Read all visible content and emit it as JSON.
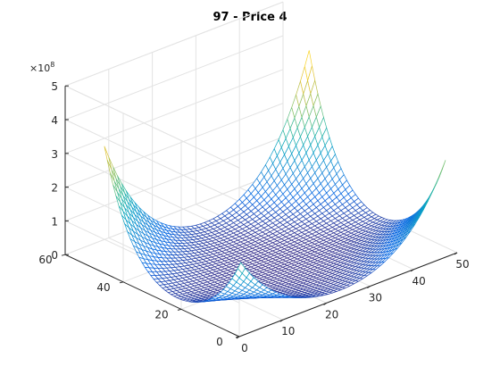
{
  "chart_data": {
    "type": "surface",
    "title": "97 - Price 4",
    "xlabel": "",
    "ylabel": "",
    "zlabel": "",
    "x_range": [
      1,
      48
    ],
    "y_range": [
      1,
      48
    ],
    "xlim": [
      0,
      50
    ],
    "ylim": [
      0,
      60
    ],
    "zlim": [
      0,
      5
    ],
    "z_exponent_label": "×10",
    "z_exponent_power": "8",
    "x_ticks": [
      0,
      10,
      20,
      30,
      40,
      50
    ],
    "y_ticks": [
      0,
      20,
      40,
      60
    ],
    "z_ticks": [
      0,
      1,
      2,
      3,
      4,
      5
    ],
    "grid": true,
    "colormap": "parula",
    "peaks": [
      {
        "x": 1,
        "y": 48,
        "z": 3.65
      },
      {
        "x": 1,
        "y": 1,
        "z": 2.1
      },
      {
        "x": 48,
        "y": 48,
        "z": 4.15
      },
      {
        "x": 48,
        "y": 1,
        "z": 2.8
      }
    ]
  }
}
